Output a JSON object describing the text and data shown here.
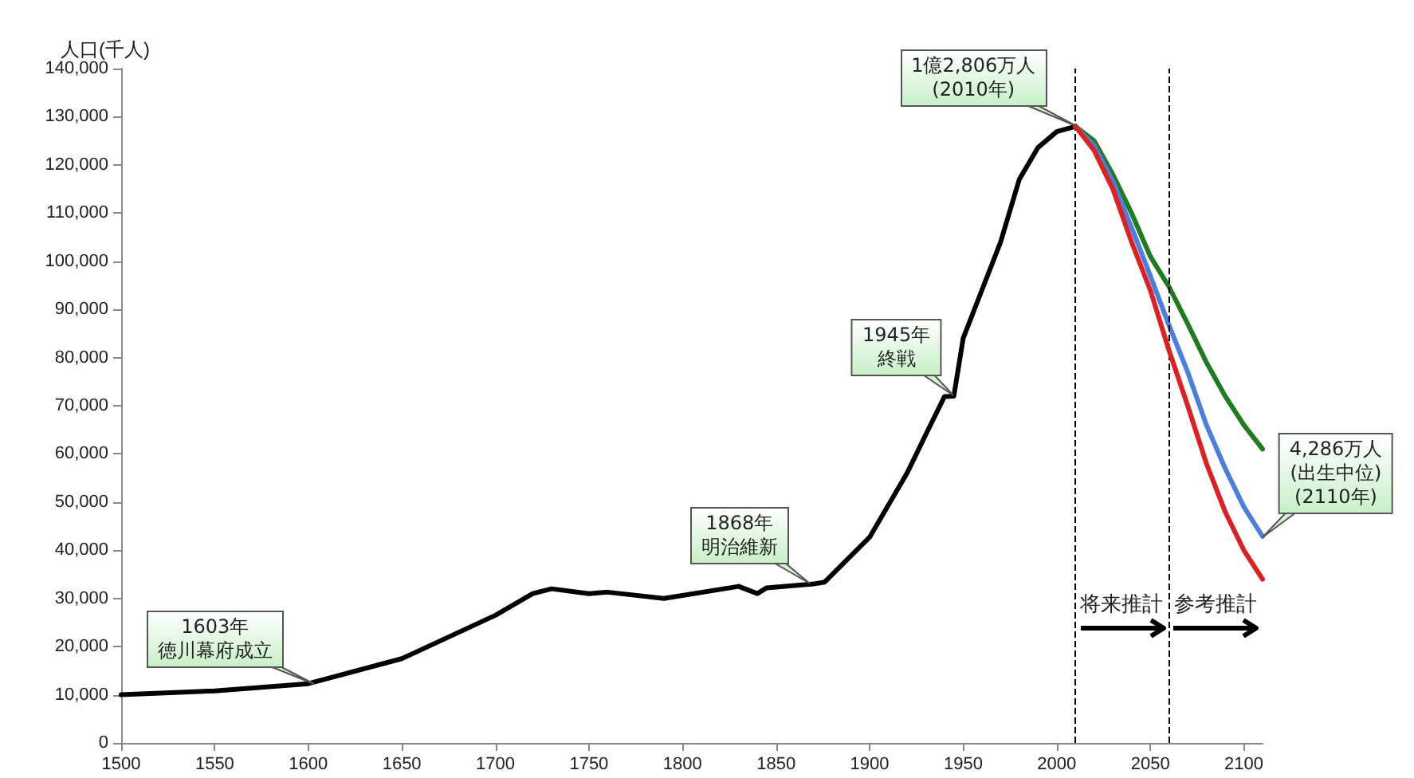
{
  "chart_data": {
    "type": "line",
    "ylabel": "人口(千人)",
    "xlim": [
      1500,
      2110
    ],
    "xticks": [
      1500,
      1550,
      1600,
      1650,
      1700,
      1750,
      1800,
      1850,
      1900,
      1950,
      2000,
      2050,
      2100
    ],
    "ylim": [
      0,
      140000
    ],
    "yticks": [
      0,
      {
        "value": 10000,
        "label": "10,000"
      },
      {
        "value": 20000,
        "label": "20,000"
      },
      {
        "value": 30000,
        "label": "30,000"
      },
      {
        "value": 40000,
        "label": "40,000"
      },
      {
        "value": 50000,
        "label": "50,000"
      },
      {
        "value": 60000,
        "label": "60,000"
      },
      {
        "value": 70000,
        "label": "70,000"
      },
      {
        "value": 80000,
        "label": "80,000"
      },
      {
        "value": 90000,
        "label": "90,000"
      },
      {
        "value": 100000,
        "label": "100,000"
      },
      {
        "value": 110000,
        "label": "110,000"
      },
      {
        "value": 120000,
        "label": "120,000"
      },
      {
        "value": 130000,
        "label": "130,000"
      },
      {
        "value": 140000,
        "label": "140,000"
      }
    ],
    "grid": false,
    "marker": "none",
    "line_style": "solid",
    "series": [
      {
        "color": "#000000",
        "x": [
          1500,
          1550,
          1600,
          1650,
          1700,
          1720,
          1730,
          1750,
          1760,
          1790,
          1800,
          1830,
          1840,
          1845,
          1870,
          1876,
          1900,
          1920,
          1930,
          1940,
          1945,
          1950,
          1960,
          1970,
          1980,
          1990,
          2000,
          2010
        ],
        "values": [
          10000,
          10800,
          12300,
          17500,
          26500,
          31000,
          32000,
          31000,
          31300,
          30000,
          30600,
          32500,
          31000,
          32200,
          33000,
          33400,
          42700,
          56000,
          64000,
          71900,
          72000,
          84000,
          94000,
          104000,
          117000,
          123600,
          126900,
          128000
        ]
      },
      {
        "color": "#1e7b1e",
        "x": [
          2010,
          2020,
          2030,
          2040,
          2050,
          2060,
          2070,
          2080,
          2090,
          2100,
          2110
        ],
        "values": [
          128000,
          125000,
          118000,
          110000,
          101000,
          94700,
          87000,
          79000,
          72000,
          66000,
          61000
        ]
      },
      {
        "color": "#4a7fe0",
        "x": [
          2010,
          2020,
          2030,
          2040,
          2050,
          2060,
          2070,
          2080,
          2090,
          2100,
          2110
        ],
        "values": [
          128000,
          124000,
          116600,
          107000,
          97000,
          86700,
          77000,
          66000,
          57000,
          49000,
          42860
        ]
      },
      {
        "color": "#e02020",
        "x": [
          2010,
          2020,
          2030,
          2040,
          2050,
          2060,
          2070,
          2080,
          2090,
          2100,
          2110
        ],
        "values": [
          128000,
          123000,
          115000,
          104000,
          94000,
          81500,
          70000,
          58000,
          48000,
          40000,
          34000
        ]
      }
    ],
    "ref_lines": [
      {
        "axis": "x",
        "value": 2010,
        "color": "#000000",
        "line_style": "dashed"
      },
      {
        "axis": "x",
        "value": 2060,
        "color": "#000000",
        "line_style": "dashed"
      }
    ],
    "annotations": [
      {
        "text": "1603年徳川幕府成立",
        "x": 1603,
        "y": 12300
      },
      {
        "text": "1868年明治維新",
        "x": 1868,
        "y": 33000
      },
      {
        "text": "1945年終戦",
        "x": 1945,
        "y": 72000
      },
      {
        "text": "1億2,806万人\n(2010年)",
        "x": 2010,
        "y": 128000
      },
      {
        "text": "4,286万人\n(出生中位)\n(2110年)",
        "x": 2110,
        "y": 42860
      },
      {
        "text": "将来推計",
        "x": 2010,
        "y": 27000
      },
      {
        "text": "参考推計",
        "x": 2060,
        "y": 27000
      }
    ]
  }
}
